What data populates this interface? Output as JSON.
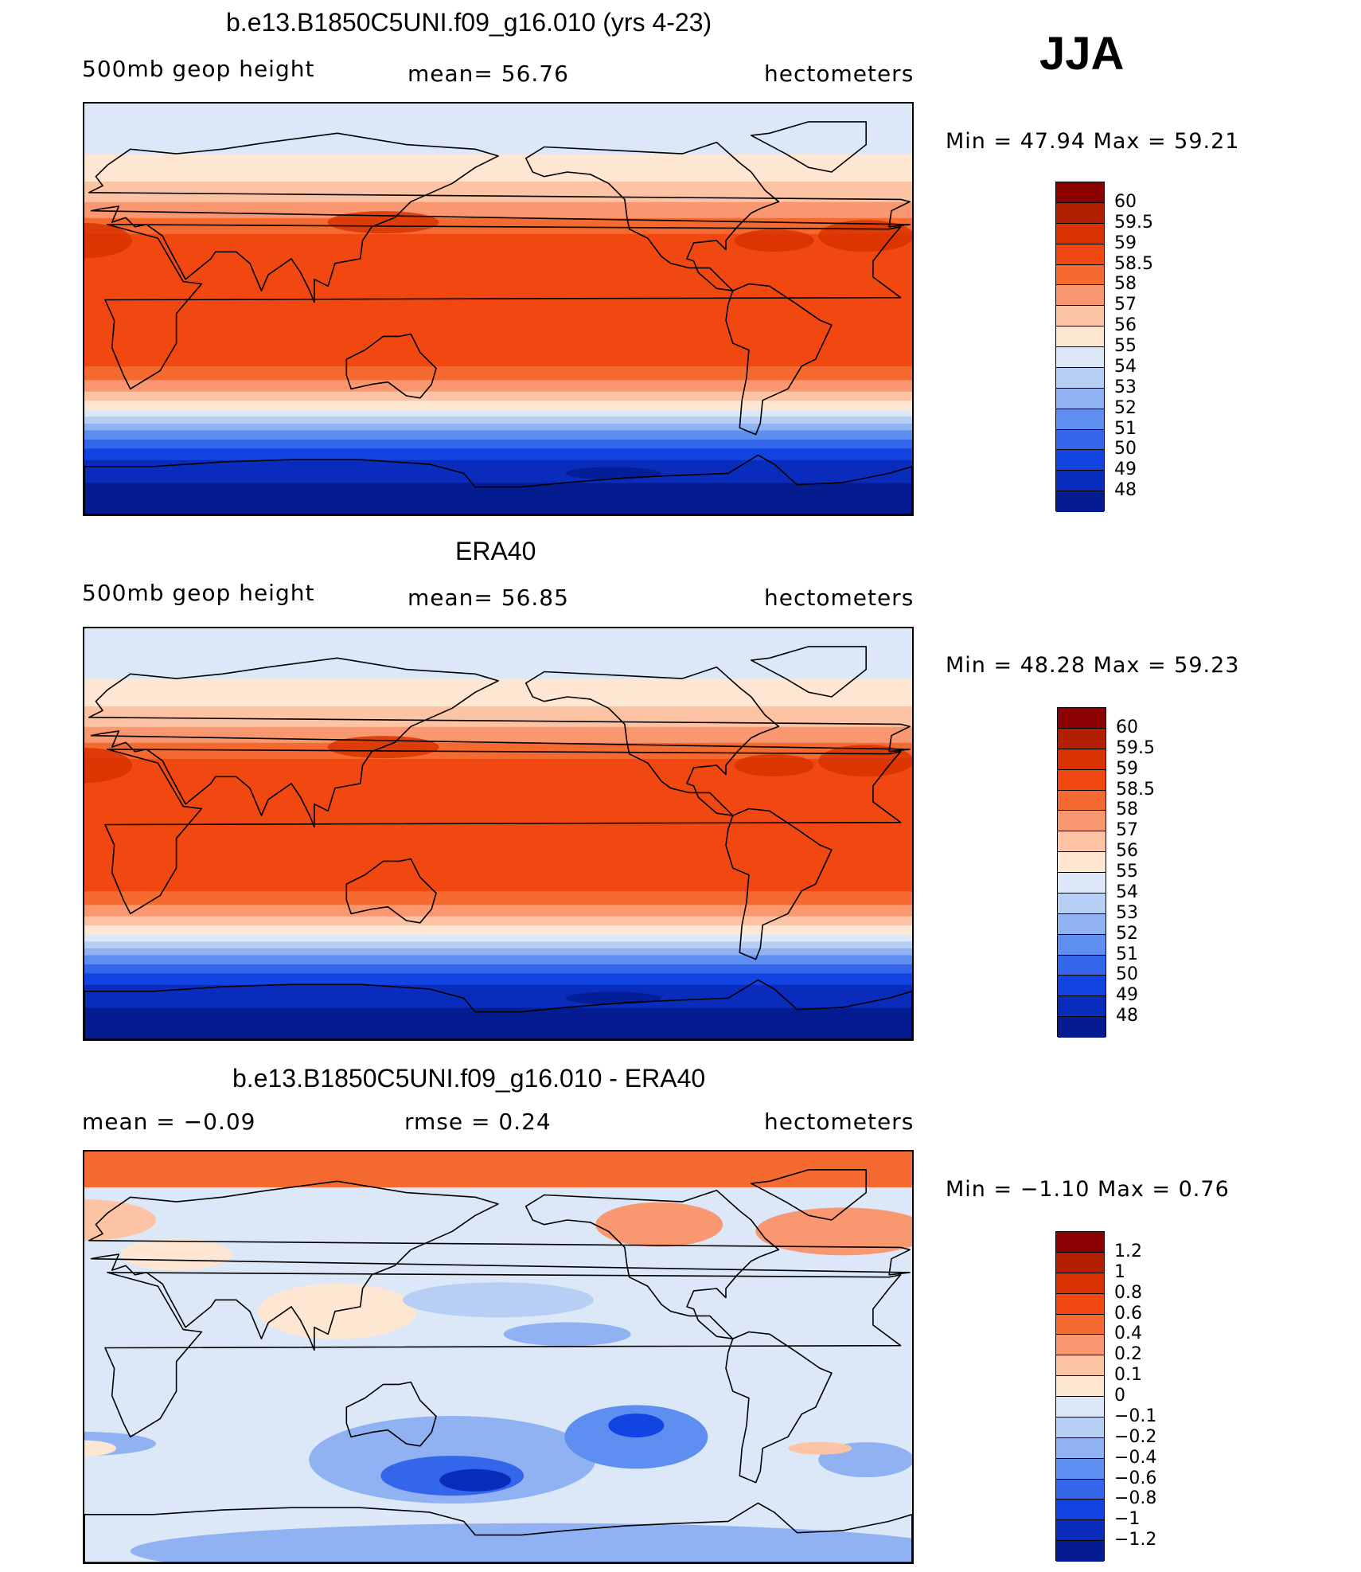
{
  "season": "JJA",
  "panels": [
    {
      "title": "b.e13.B1850C5UNI.f09_g16.010 (yrs 4-23)",
      "left_label": "500mb geop height",
      "center_label": "mean=  56.76",
      "right_label": "hectometers",
      "minmax": "Min =   47.94  Max =   59.21",
      "kind": "height",
      "field": {
        "type": "500mb geopotential height",
        "units": "hectometers",
        "mean": 56.76,
        "min": 47.94,
        "max": 59.21
      }
    },
    {
      "title": "ERA40",
      "left_label": "500mb geop height",
      "center_label": "mean=  56.85",
      "right_label": "hectometers",
      "minmax": "Min =   48.28  Max =   59.23",
      "kind": "height",
      "field": {
        "type": "500mb geopotential height",
        "units": "hectometers",
        "mean": 56.85,
        "min": 48.28,
        "max": 59.23
      }
    },
    {
      "title": "b.e13.B1850C5UNI.f09_g16.010 - ERA40",
      "left_label": "mean =   −0.09",
      "center_label": "rmse =    0.24",
      "right_label": "hectometers",
      "minmax": "Min =   −1.10  Max =    0.76",
      "kind": "diff",
      "field": {
        "type": "difference",
        "units": "hectometers",
        "mean": -0.09,
        "rmse": 0.24,
        "min": -1.1,
        "max": 0.76
      }
    }
  ],
  "colorbars": {
    "height": {
      "colors": [
        "#8b0000",
        "#b22000",
        "#d83200",
        "#f04810",
        "#f56a30",
        "#f99870",
        "#fcc4a4",
        "#fde6d2",
        "#dce8f8",
        "#b8cff5",
        "#90b2f2",
        "#5e8ef0",
        "#3466ec",
        "#1244e2",
        "#0a2cbc",
        "#041c90"
      ],
      "labels": [
        "60",
        "59.5",
        "59",
        "58.5",
        "58",
        "57",
        "56",
        "55",
        "54",
        "53",
        "52",
        "51",
        "50",
        "49",
        "48"
      ]
    },
    "diff": {
      "colors": [
        "#8b0000",
        "#b22000",
        "#d83200",
        "#f04810",
        "#f56a30",
        "#f99870",
        "#fcc4a4",
        "#fde6d2",
        "#dce8f8",
        "#b8cff5",
        "#90b2f2",
        "#5e8ef0",
        "#3466ec",
        "#1244e2",
        "#0a2cbc",
        "#041c90"
      ],
      "labels": [
        "1.2",
        "1",
        "0.8",
        "0.6",
        "0.4",
        "0.2",
        "0.1",
        "0",
        "−0.1",
        "−0.2",
        "−0.4",
        "−0.6",
        "−0.8",
        "−1",
        "−1.2"
      ]
    }
  }
}
